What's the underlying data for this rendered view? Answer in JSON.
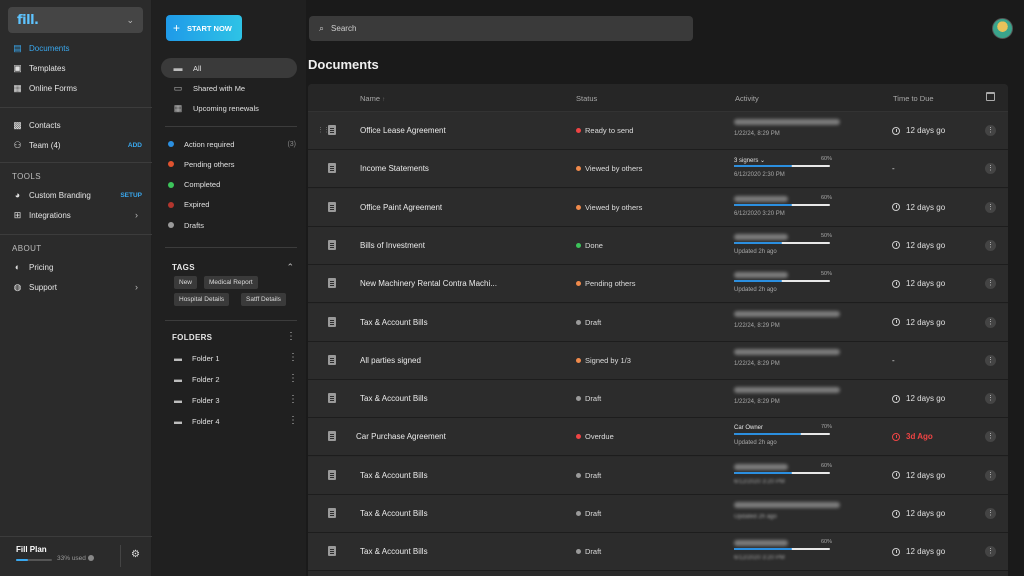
{
  "workspace": {
    "logo": "fill."
  },
  "sidebar": {
    "group1": [
      {
        "label": "Documents",
        "icon": "document-icon",
        "active": true
      },
      {
        "label": "Templates",
        "icon": "templates-icon"
      },
      {
        "label": "Online Forms",
        "icon": "forms-icon"
      }
    ],
    "group2": [
      {
        "label": "Contacts",
        "icon": "contacts-icon"
      },
      {
        "label": "Team (4)",
        "icon": "team-icon",
        "action": "ADD"
      }
    ],
    "tools_heading": "TOOLS",
    "tools": [
      {
        "label": "Custom Branding",
        "icon": "palette-icon",
        "action": "SETUP"
      },
      {
        "label": "Integrations",
        "icon": "integrations-icon",
        "arrow": true
      }
    ],
    "about_heading": "ABOUT",
    "about": [
      {
        "label": "Pricing",
        "icon": "toggle-icon"
      },
      {
        "label": "Support",
        "icon": "support-icon",
        "arrow": true
      }
    ],
    "plan": {
      "title": "Fill Plan",
      "used_label": "33% used",
      "used_fraction": 0.33
    }
  },
  "column2": {
    "start_button": "START NOW",
    "filters": [
      {
        "label": "All",
        "active": true
      },
      {
        "label": "Shared with Me"
      },
      {
        "label": "Upcoming renewals"
      }
    ],
    "statuses": [
      {
        "label": "Action required",
        "color": "#2b8fe0",
        "count": "(3)"
      },
      {
        "label": "Pending others",
        "color": "#e0532f"
      },
      {
        "label": "Completed",
        "color": "#3cc45a"
      },
      {
        "label": "Expired",
        "color": "#b3362e"
      },
      {
        "label": "Drafts",
        "color": "#9a9a9a"
      }
    ],
    "tags_heading": "TAGS",
    "tags": [
      "New",
      "Medical Report",
      "Hospital Details",
      "Satff Details"
    ],
    "folders_heading": "FOLDERS",
    "folders": [
      "Folder 1",
      "Folder 2",
      "Folder 3",
      "Folder 4"
    ]
  },
  "search": {
    "placeholder": "Search"
  },
  "main": {
    "title": "Documents",
    "columns": {
      "name": "Name",
      "status": "Status",
      "activity": "Activity",
      "due": "Time to Due"
    },
    "rows": [
      {
        "name": "Office Lease Agreement",
        "status": "Ready to send",
        "status_color": "#ef4444",
        "act_label": "",
        "progress": null,
        "act_time": "1/22/24, 8:29 PM",
        "due": "12 days go",
        "overdue": false,
        "grip": true
      },
      {
        "name": "Income Statements",
        "status": "Viewed by others",
        "status_color": "#f08a4b",
        "act_label": "3 signers ⌄",
        "progress": 0.6,
        "pct": "60%",
        "act_time": "6/12/2020 2:30 PM",
        "due": "-",
        "overdue": false
      },
      {
        "name": "Office Paint Agreement",
        "status": "Viewed by others",
        "status_color": "#f08a4b",
        "act_label": "",
        "progress": 0.6,
        "pct": "60%",
        "act_time": "6/12/2020 3:20 PM",
        "due": "12 days go",
        "overdue": false
      },
      {
        "name": "Bills of Investment",
        "status": "Done",
        "status_color": "#3cc45a",
        "act_label": "",
        "progress": 0.5,
        "pct": "50%",
        "act_time": "Updated 2h ago",
        "due": "12 days go",
        "overdue": false
      },
      {
        "name": "New Machinery Rental Contra Machi...",
        "status": "Pending others",
        "status_color": "#f08a4b",
        "act_label": "",
        "progress": 0.5,
        "pct": "50%",
        "act_time": "Updated 2h ago",
        "due": "12 days go",
        "overdue": false
      },
      {
        "name": "Tax & Account Bills",
        "status": "Draft",
        "status_color": "#9a9a9a",
        "act_label": "",
        "progress": null,
        "act_time": "1/22/24, 8:29 PM",
        "due": "12 days go",
        "overdue": false
      },
      {
        "name": "All parties signed",
        "status": "Signed by 1/3",
        "status_color": "#f08a4b",
        "act_label": "",
        "progress": null,
        "act_time": "1/22/24, 8:29 PM",
        "due": "-",
        "overdue": false
      },
      {
        "name": "Tax & Account Bills",
        "status": "Draft",
        "status_color": "#9a9a9a",
        "act_label": "",
        "progress": null,
        "act_time": "1/22/24, 8:29 PM",
        "due": "12 days go",
        "overdue": false
      },
      {
        "name": "Car Purchase Agreement",
        "status": "Overdue",
        "status_color": "#ef4444",
        "act_label": "Car Owner",
        "progress": 0.7,
        "pct": "70%",
        "act_time": "Updated 2h ago",
        "due": "3d Ago",
        "overdue": true
      },
      {
        "name": "Tax & Account Bills",
        "status": "Draft",
        "status_color": "#9a9a9a",
        "act_label": "",
        "progress": 0.6,
        "pct": "60%",
        "act_time": "6/12/2020 3:20 PM",
        "due": "12 days go",
        "overdue": false
      },
      {
        "name": "Tax & Account Bills",
        "status": "Draft",
        "status_color": "#9a9a9a",
        "act_label": "",
        "progress": null,
        "act_time": "Updated 2h ago",
        "due": "12 days go",
        "overdue": false
      },
      {
        "name": "Tax & Account Bills",
        "status": "Draft",
        "status_color": "#9a9a9a",
        "act_label": "",
        "progress": 0.6,
        "pct": "60%",
        "act_time": "6/12/2020 3:20 PM",
        "due": "12 days go",
        "overdue": false
      }
    ]
  }
}
